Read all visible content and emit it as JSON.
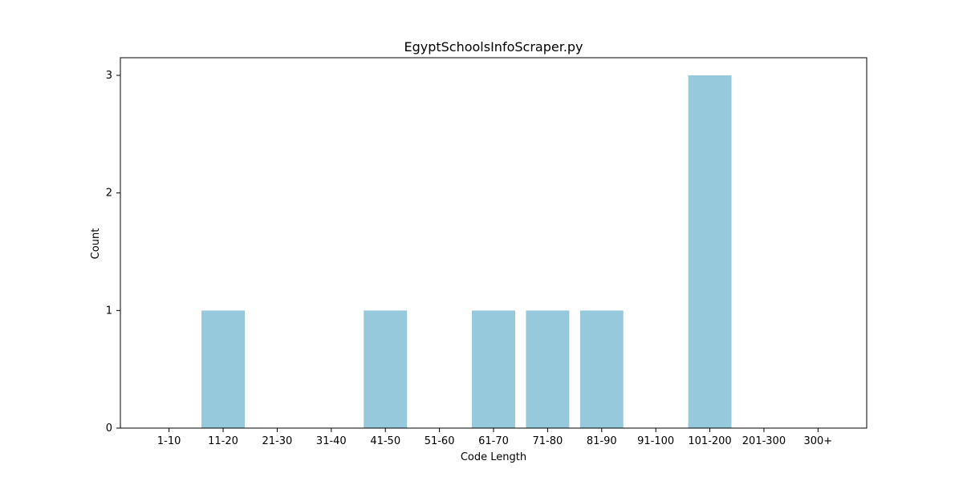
{
  "chart_data": {
    "type": "bar",
    "title": "EgyptSchoolsInfoScraper.py",
    "xlabel": "Code Length",
    "ylabel": "Count",
    "categories": [
      "1-10",
      "11-20",
      "21-30",
      "31-40",
      "41-50",
      "51-60",
      "61-70",
      "71-80",
      "81-90",
      "91-100",
      "101-200",
      "201-300",
      "300+"
    ],
    "values": [
      0,
      1,
      0,
      0,
      1,
      0,
      1,
      1,
      1,
      0,
      3,
      0,
      0
    ],
    "yticks": [
      0,
      1,
      2,
      3
    ],
    "ylim": [
      0,
      3.15
    ],
    "grid": false,
    "legend": "none"
  },
  "colors": {
    "bar": "#96c9dc",
    "axis": "#000000",
    "background": "#ffffff"
  }
}
